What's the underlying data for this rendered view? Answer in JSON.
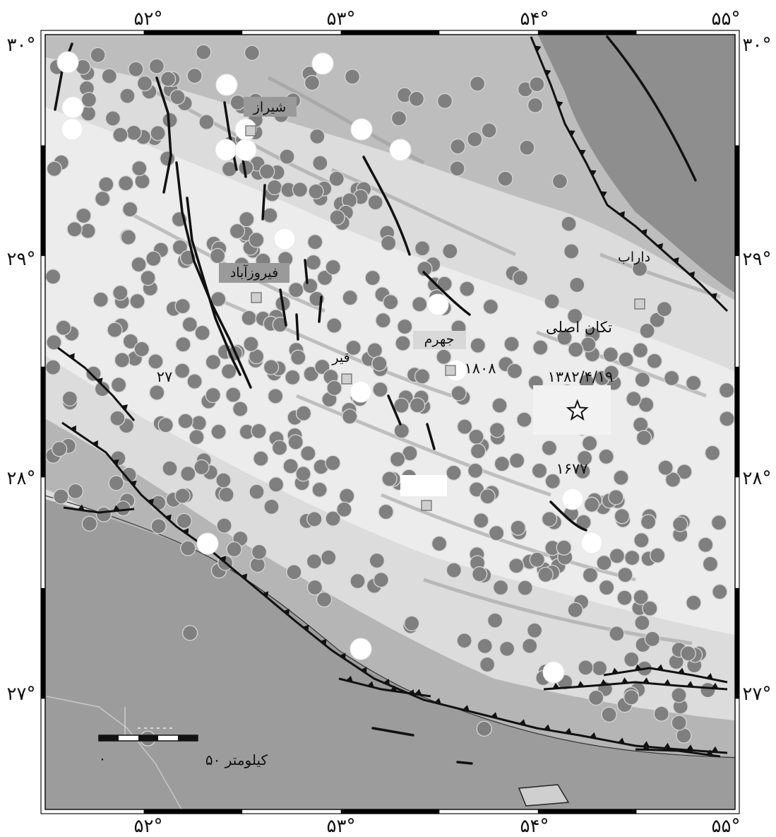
{
  "map": {
    "lon_range": [
      51.5,
      55.0
    ],
    "lat_range": [
      26.5,
      30.0
    ],
    "colors": {
      "land_bright": "#e9e9e9",
      "land_mid": "#c4c4c4",
      "sea": "#9c9c9c",
      "upland": "#8e8e8e",
      "event_fill": "#7f7f7f",
      "event_stroke": "#d7d7d7",
      "historic_fill": "#ffffff",
      "fault": "#111111",
      "frame_bar": "#000000"
    },
    "longitude_ticks": [
      {
        "value": 52,
        "label": "۵۲°"
      },
      {
        "value": 53,
        "label": "۵۳°"
      },
      {
        "value": 54,
        "label": "۵۴°"
      },
      {
        "value": 55,
        "label": "۵۵°"
      }
    ],
    "latitude_ticks": [
      {
        "value": 30,
        "label": "۳۰°"
      },
      {
        "value": 29,
        "label": "۲۹°"
      },
      {
        "value": 28,
        "label": "۲۸°"
      },
      {
        "value": 27,
        "label": "۲۷°"
      }
    ],
    "places": [
      {
        "key": "shiraz",
        "name": "شیراز",
        "lon": 52.54,
        "lat": 29.61
      },
      {
        "key": "firuzabad",
        "name": "فیروزآباد",
        "lon": 52.57,
        "lat": 28.85
      },
      {
        "key": "jahrom",
        "name": "جهرم",
        "lon": 53.56,
        "lat": 28.5
      },
      {
        "key": "qir",
        "name": "قیر",
        "lon": 53.03,
        "lat": 28.48
      },
      {
        "key": "darab",
        "name": "داراب",
        "lon": 54.55,
        "lat": 28.75
      }
    ],
    "annotations": [
      {
        "key": "mainshock-label",
        "text": "تکان اصلی"
      },
      {
        "key": "mainshock-date",
        "text": "۱۳۸۲/۴/۱۹"
      },
      {
        "key": "historic-1808",
        "text": "۱۸۰۸"
      },
      {
        "key": "historic-1677",
        "text": "۱۶۷۷"
      },
      {
        "key": "number-27",
        "text": "۲۷"
      }
    ],
    "mainshock": {
      "lon": 54.2,
      "lat": 28.3,
      "symbol": "star-icon"
    },
    "scale_bar": {
      "label": "کیلومتر ۵۰",
      "zero": "۰"
    }
  }
}
